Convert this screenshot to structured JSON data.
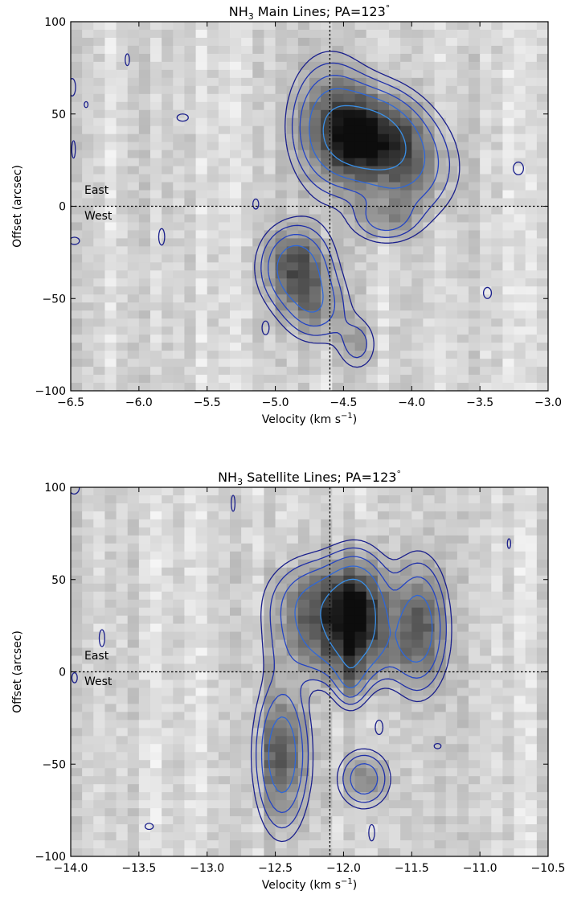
{
  "chart_data": [
    {
      "type": "heatmap",
      "title": "NH3 Main Lines; PA=123°",
      "title_parts": {
        "molecule": "NH",
        "subscript": "3",
        "rest": " Main Lines; PA=123",
        "degree": "°"
      },
      "xlabel": "Velocity (km s",
      "xlabel_sup": "−1",
      "xlabel_close": ")",
      "ylabel": "Offset (arcsec)",
      "xlim": [
        -6.5,
        -3.0
      ],
      "ylim": [
        -100,
        100
      ],
      "xticks": [
        -6.5,
        -6.0,
        -5.5,
        -5.0,
        -4.5,
        -4.0,
        -3.5,
        -3.0
      ],
      "xtick_labels": [
        "−6.5",
        "−6.0",
        "−5.5",
        "−5.0",
        "−4.5",
        "−4.0",
        "−3.5",
        "−3.0"
      ],
      "yticks": [
        -100,
        -50,
        0,
        50,
        100
      ],
      "ytick_labels": [
        "−100",
        "−50",
        "0",
        "50",
        "100"
      ],
      "hline_y": 0,
      "vline_x": -4.6,
      "annotations": [
        {
          "text": "East",
          "x": -6.4,
          "y": 9
        },
        {
          "text": "West",
          "x": -6.4,
          "y": -5
        }
      ],
      "grid": false,
      "emission_peaks": [
        {
          "x": -4.3,
          "y": 37,
          "amp": 1.0,
          "sx": 0.22,
          "sy": 16
        },
        {
          "x": -4.6,
          "y": 45,
          "amp": 0.55,
          "sx": 0.18,
          "sy": 22
        },
        {
          "x": -4.85,
          "y": -33,
          "amp": 0.7,
          "sx": 0.16,
          "sy": 14
        },
        {
          "x": -4.7,
          "y": -55,
          "amp": 0.4,
          "sx": 0.15,
          "sy": 12
        },
        {
          "x": -4.2,
          "y": -7,
          "amp": 0.35,
          "sx": 0.15,
          "sy": 8
        },
        {
          "x": -4.0,
          "y": 20,
          "amp": 0.4,
          "sx": 0.22,
          "sy": 18
        },
        {
          "x": -4.4,
          "y": -75,
          "amp": 0.25,
          "sx": 0.1,
          "sy": 10
        }
      ],
      "contour_colors": [
        "#1a1f8c",
        "#1f2fa8",
        "#2545c4",
        "#2f67d8",
        "#3a90e8"
      ]
    },
    {
      "type": "heatmap",
      "title": "NH3 Satellite Lines; PA=123°",
      "title_parts": {
        "molecule": "NH",
        "subscript": "3",
        "rest": " Satellite Lines; PA=123",
        "degree": "°"
      },
      "xlabel": "Velocity (km s",
      "xlabel_sup": "−1",
      "xlabel_close": ")",
      "ylabel": "Offset (arcsec)",
      "xlim": [
        -14.0,
        -10.5
      ],
      "ylim": [
        -100,
        100
      ],
      "xticks": [
        -14.0,
        -13.5,
        -13.0,
        -12.5,
        -12.0,
        -11.5,
        -11.0,
        -10.5
      ],
      "xtick_labels": [
        "−14.0",
        "−13.5",
        "−13.0",
        "−12.5",
        "−12.0",
        "−11.5",
        "−11.0",
        "−10.5"
      ],
      "yticks": [
        -100,
        -50,
        0,
        50,
        100
      ],
      "ytick_labels": [
        "−100",
        "−50",
        "0",
        "50",
        "100"
      ],
      "hline_y": 0,
      "vline_x": -12.1,
      "annotations": [
        {
          "text": "East",
          "x": -13.9,
          "y": 9
        },
        {
          "text": "West",
          "x": -13.9,
          "y": -5
        }
      ],
      "grid": false,
      "emission_peaks": [
        {
          "x": -11.9,
          "y": 33,
          "amp": 1.0,
          "sx": 0.14,
          "sy": 18
        },
        {
          "x": -12.2,
          "y": 35,
          "amp": 0.6,
          "sx": 0.22,
          "sy": 16
        },
        {
          "x": -11.45,
          "y": 25,
          "amp": 0.65,
          "sx": 0.13,
          "sy": 22
        },
        {
          "x": -12.45,
          "y": -45,
          "amp": 0.7,
          "sx": 0.12,
          "sy": 25
        },
        {
          "x": -11.85,
          "y": -58,
          "amp": 0.45,
          "sx": 0.12,
          "sy": 10
        },
        {
          "x": -11.95,
          "y": -5,
          "amp": 0.35,
          "sx": 0.08,
          "sy": 10
        },
        {
          "x": -12.0,
          "y": 10,
          "amp": 0.35,
          "sx": 0.3,
          "sy": 12
        }
      ],
      "contour_colors": [
        "#1a1f8c",
        "#1f2fa8",
        "#2545c4",
        "#2f67d8",
        "#3a90e8"
      ]
    }
  ]
}
